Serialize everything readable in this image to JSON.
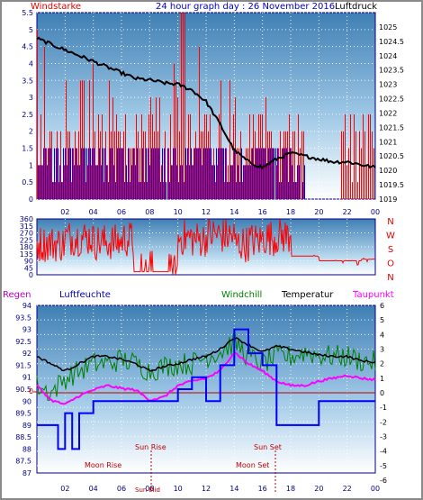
{
  "colors": {
    "frame": "#8a8a8a",
    "title": "#0000c0",
    "wind_label": "#e00000",
    "pressure_label": "#000000",
    "gust": "#ff0000",
    "wind": "#0000ff",
    "pressure": "#000000",
    "direction": "#ff0000",
    "humidity": "#0000ff",
    "windchill": "#008000",
    "temperature": "#000000",
    "dewpoint": "#ff00ff",
    "rain_label": "#c000c0",
    "sun_moon": "#c00000"
  },
  "header": {
    "wind_label": "Windstarke",
    "title": "24 hour graph day : 26 November 2016",
    "pressure_label": "Luftdruck"
  },
  "panel3_labels": {
    "rain": "Regen",
    "humidity": "Luftfeuchte",
    "windchill": "Windchill",
    "temperature": "Temperatur",
    "dewpoint": "Taupunkt"
  },
  "astronomy": {
    "sun_rise": "Sun Rise",
    "sun_set": "Sun Set",
    "moon_rise": "Moon Rise",
    "moon_set": "Moon Set",
    "sun_mid": "Sun Mid"
  },
  "x_ticks": [
    "02",
    "04",
    "06",
    "08",
    "10",
    "12",
    "14",
    "16",
    "18",
    "20",
    "22",
    "00"
  ],
  "chart_data": [
    {
      "type": "bar",
      "name": "wind_and_pressure",
      "x_hours": [
        1.0,
        2.0,
        3.0,
        4.0,
        5.0,
        6.0,
        7.0,
        8.0,
        9.0,
        10.0,
        11.0,
        12.0,
        13.0,
        14.0,
        15.0,
        16.0,
        17.0,
        18.0,
        19.0,
        20.0,
        21.0,
        22.0,
        23.0,
        24.0
      ],
      "y_left_ticks": [
        "5.5",
        "5",
        "4.5",
        "4",
        "3.5",
        "3",
        "2.5",
        "2",
        "1.5",
        "1",
        "0.5",
        "0"
      ],
      "ylim_left": [
        0,
        5.5
      ],
      "y_right_ticks": [
        "1025",
        "1024.5",
        "1024",
        "1023.5",
        "1023",
        "1022.5",
        "1022",
        "1021.5",
        "1021",
        "1020.5",
        "1020",
        "1019.5",
        "1019"
      ],
      "ylim_right": [
        1019,
        1025.5
      ],
      "gust_profile": [
        4.5,
        4.0,
        3.5,
        3.0,
        2.5,
        2.5,
        2.0,
        2.0,
        2.5,
        3.0,
        2.0,
        3.5,
        2.0,
        3.0,
        2.5,
        2.0,
        2.0,
        1.5,
        0.3,
        0.0,
        0.5,
        1.0,
        1.5,
        1.5
      ],
      "wind_profile": [
        1.5,
        1.5,
        1.5,
        1.5,
        1.5,
        1.5,
        1.5,
        1.5,
        1.5,
        1.5,
        1.5,
        1.5,
        1.5,
        1.5,
        1.5,
        1.5,
        1.5,
        1.5,
        1.0,
        0.5,
        0.5,
        0.5,
        0.5,
        0.5
      ],
      "pressure": [
        [
          0,
          1024.6
        ],
        [
          1,
          1024.4
        ],
        [
          2,
          1024.2
        ],
        [
          3,
          1024.0
        ],
        [
          4,
          1023.8
        ],
        [
          5,
          1023.6
        ],
        [
          6,
          1023.4
        ],
        [
          7,
          1023.2
        ],
        [
          8,
          1023.15
        ],
        [
          9,
          1023.05
        ],
        [
          10,
          1023.0
        ],
        [
          11,
          1022.8
        ],
        [
          12,
          1022.4
        ],
        [
          13,
          1021.6
        ],
        [
          14,
          1020.7
        ],
        [
          15,
          1020.3
        ],
        [
          16,
          1020.1
        ],
        [
          17,
          1020.4
        ],
        [
          18,
          1020.6
        ],
        [
          19,
          1020.5
        ],
        [
          20,
          1020.4
        ],
        [
          21,
          1020.3
        ],
        [
          22,
          1020.3
        ],
        [
          23,
          1020.2
        ],
        [
          24,
          1020.1
        ]
      ]
    },
    {
      "type": "line",
      "name": "wind_direction",
      "y_left_ticks": [
        "360",
        "315",
        "270",
        "225",
        "180",
        "135",
        "90",
        "45",
        "0"
      ],
      "ylim": [
        0,
        360
      ],
      "y_right_letters": [
        "N",
        "W",
        "S",
        "O",
        "N"
      ],
      "direction_profile": [
        [
          0,
          200
        ],
        [
          2,
          240
        ],
        [
          4,
          210
        ],
        [
          6,
          230
        ],
        [
          7,
          20
        ],
        [
          8,
          20
        ],
        [
          9,
          20
        ],
        [
          10,
          240
        ],
        [
          11,
          230
        ],
        [
          12,
          260
        ],
        [
          13,
          250
        ],
        [
          14,
          200
        ],
        [
          15,
          220
        ],
        [
          16,
          240
        ],
        [
          17,
          250
        ],
        [
          18,
          120
        ],
        [
          19,
          120
        ],
        [
          20,
          90
        ],
        [
          21,
          90
        ],
        [
          22,
          90
        ],
        [
          23,
          100
        ],
        [
          24,
          240
        ]
      ]
    },
    {
      "type": "line",
      "name": "temperature_humidity",
      "y_left_ticks": [
        "94",
        "93.5",
        "93",
        "92.5",
        "92",
        "91.5",
        "91",
        "90.5",
        "90",
        "89.5",
        "89",
        "88.5",
        "88",
        "87.5",
        "87"
      ],
      "ylim_left": [
        87,
        94
      ],
      "y_right_ticks": [
        "6",
        "5",
        "4",
        "3",
        "2",
        "1",
        "0",
        "-1",
        "-2",
        "-3",
        "-4",
        "-5",
        "-6"
      ],
      "ylim_right": [
        -5.5,
        6
      ],
      "rain_zero_label": "0",
      "temperature": [
        [
          0,
          2.5
        ],
        [
          1,
          2.0
        ],
        [
          2,
          1.5
        ],
        [
          3,
          2.0
        ],
        [
          4,
          2.5
        ],
        [
          5,
          2.5
        ],
        [
          6,
          2.3
        ],
        [
          7,
          2.0
        ],
        [
          8,
          1.5
        ],
        [
          9,
          1.8
        ],
        [
          10,
          2.0
        ],
        [
          11,
          2.3
        ],
        [
          12,
          2.5
        ],
        [
          13,
          3.0
        ],
        [
          14,
          3.8
        ],
        [
          15,
          3.3
        ],
        [
          16,
          2.8
        ],
        [
          17,
          3.2
        ],
        [
          18,
          3.0
        ],
        [
          19,
          2.8
        ],
        [
          20,
          2.6
        ],
        [
          21,
          2.5
        ],
        [
          22,
          2.5
        ],
        [
          23,
          2.2
        ],
        [
          24,
          2.1
        ]
      ],
      "dewpoint": [
        [
          0,
          0.5
        ],
        [
          1,
          -0.5
        ],
        [
          2,
          -0.8
        ],
        [
          3,
          -0.2
        ],
        [
          4,
          0.2
        ],
        [
          5,
          0.5
        ],
        [
          6,
          0.3
        ],
        [
          7,
          0.2
        ],
        [
          8,
          -0.5
        ],
        [
          9,
          -0.3
        ],
        [
          10,
          0.5
        ],
        [
          11,
          0.8
        ],
        [
          12,
          1.0
        ],
        [
          13,
          1.5
        ],
        [
          14,
          2.8
        ],
        [
          15,
          2.0
        ],
        [
          16,
          1.5
        ],
        [
          17,
          0.8
        ],
        [
          18,
          0.5
        ],
        [
          19,
          0.5
        ],
        [
          20,
          0.8
        ],
        [
          21,
          1.0
        ],
        [
          22,
          1.2
        ],
        [
          23,
          1.0
        ],
        [
          24,
          0.9
        ]
      ],
      "windchill": [
        [
          0,
          0.5
        ],
        [
          1,
          0.0
        ],
        [
          2,
          1.0
        ],
        [
          3,
          1.5
        ],
        [
          4,
          2.0
        ],
        [
          5,
          2.0
        ],
        [
          6,
          2.3
        ],
        [
          7,
          2.0
        ],
        [
          8,
          1.5
        ],
        [
          9,
          1.8
        ],
        [
          10,
          2.0
        ],
        [
          11,
          2.0
        ],
        [
          12,
          2.5
        ],
        [
          13,
          2.8
        ],
        [
          14,
          3.5
        ],
        [
          15,
          2.5
        ],
        [
          16,
          2.0
        ],
        [
          17,
          2.5
        ],
        [
          18,
          2.5
        ],
        [
          19,
          2.8
        ],
        [
          20,
          2.6
        ],
        [
          21,
          2.5
        ],
        [
          22,
          2.5
        ],
        [
          23,
          2.2
        ],
        [
          24,
          2.1
        ]
      ],
      "humidity": [
        [
          0,
          89
        ],
        [
          1,
          89
        ],
        [
          1.5,
          88
        ],
        [
          2,
          89.5
        ],
        [
          2.5,
          88
        ],
        [
          3,
          89.5
        ],
        [
          4,
          90
        ],
        [
          5,
          90
        ],
        [
          6,
          90
        ],
        [
          7,
          90
        ],
        [
          8,
          90
        ],
        [
          9,
          90
        ],
        [
          10,
          90.5
        ],
        [
          11,
          91
        ],
        [
          12,
          90
        ],
        [
          13,
          91.5
        ],
        [
          14,
          93
        ],
        [
          15,
          92
        ],
        [
          16,
          91.5
        ],
        [
          17,
          89
        ],
        [
          18,
          89
        ],
        [
          19,
          89
        ],
        [
          20,
          90
        ],
        [
          21,
          90
        ],
        [
          22,
          90
        ],
        [
          23,
          90
        ],
        [
          24,
          90
        ]
      ]
    }
  ]
}
